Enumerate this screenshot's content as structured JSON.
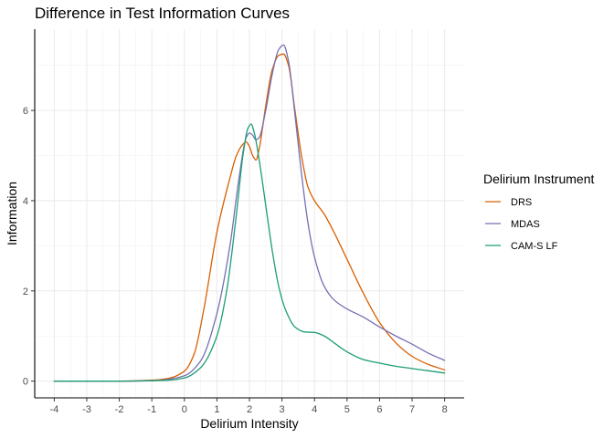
{
  "chart_data": {
    "type": "line",
    "title": "Difference in Test Information Curves",
    "xlabel": "Delirium Intensity",
    "ylabel": "Information",
    "xlim": [
      -4.6,
      8.6
    ],
    "ylim": [
      -0.37,
      7.8
    ],
    "x_ticks": [
      -4,
      -3,
      -2,
      -1,
      0,
      1,
      2,
      3,
      4,
      5,
      6,
      7,
      8
    ],
    "x_tick_labels": [
      "-4",
      "-3",
      "-2",
      "-1",
      "0",
      "1",
      "2",
      "3",
      "4",
      "5",
      "6",
      "7",
      "8"
    ],
    "y_ticks": [
      0,
      2,
      4,
      6
    ],
    "y_tick_labels": [
      "0",
      "2",
      "4",
      "6"
    ],
    "grid": true,
    "legend_title": "Delirium Instrument",
    "legend_position": "right",
    "series": [
      {
        "name": "DRS",
        "color": "#d95f02",
        "x": [
          -4,
          -2,
          -1,
          -0.5,
          0,
          0.3,
          0.6,
          1,
          1.4,
          1.6,
          1.8,
          1.9,
          2,
          2.1,
          2.2,
          2.3,
          2.5,
          2.7,
          2.9,
          3.05,
          3.2,
          3.4,
          3.6,
          3.8,
          4,
          4.3,
          4.6,
          5,
          5.5,
          6,
          6.5,
          7,
          7.5,
          8
        ],
        "y": [
          0,
          0,
          0.02,
          0.06,
          0.22,
          0.6,
          1.6,
          3.3,
          4.5,
          5.0,
          5.25,
          5.3,
          5.2,
          5.0,
          4.9,
          5.15,
          6.1,
          6.9,
          7.22,
          7.25,
          7.0,
          6.0,
          5.0,
          4.3,
          4.0,
          3.7,
          3.3,
          2.7,
          1.95,
          1.3,
          0.85,
          0.55,
          0.37,
          0.25
        ]
      },
      {
        "name": "MDAS",
        "color": "#7570b3",
        "x": [
          -4,
          -2,
          -1,
          -0.5,
          0,
          0.5,
          1,
          1.4,
          1.7,
          1.9,
          2,
          2.1,
          2.2,
          2.3,
          2.5,
          2.7,
          2.9,
          3.05,
          3.2,
          3.4,
          3.6,
          3.8,
          4,
          4.3,
          4.6,
          5,
          5.5,
          6,
          6.5,
          7,
          7.5,
          8
        ],
        "y": [
          0,
          0,
          0.01,
          0.04,
          0.12,
          0.45,
          1.5,
          3.0,
          4.6,
          5.4,
          5.5,
          5.45,
          5.35,
          5.4,
          6.0,
          6.8,
          7.35,
          7.45,
          7.1,
          5.9,
          4.6,
          3.5,
          2.75,
          2.1,
          1.8,
          1.6,
          1.42,
          1.2,
          1.0,
          0.82,
          0.62,
          0.46
        ]
      },
      {
        "name": "CAM-S LF",
        "color": "#1b9e77",
        "x": [
          -4,
          -2,
          -1,
          -0.5,
          0,
          0.5,
          1,
          1.3,
          1.6,
          1.8,
          1.95,
          2.05,
          2.15,
          2.3,
          2.5,
          2.7,
          2.9,
          3.1,
          3.4,
          3.7,
          4,
          4.3,
          4.6,
          5,
          5.5,
          6,
          6.5,
          7,
          7.5,
          8
        ],
        "y": [
          0,
          0,
          0.01,
          0.02,
          0.07,
          0.3,
          1.0,
          2.0,
          3.7,
          5.0,
          5.6,
          5.7,
          5.5,
          4.9,
          3.9,
          2.9,
          2.1,
          1.6,
          1.2,
          1.09,
          1.08,
          1.0,
          0.85,
          0.65,
          0.48,
          0.4,
          0.33,
          0.28,
          0.23,
          0.18
        ]
      }
    ]
  }
}
